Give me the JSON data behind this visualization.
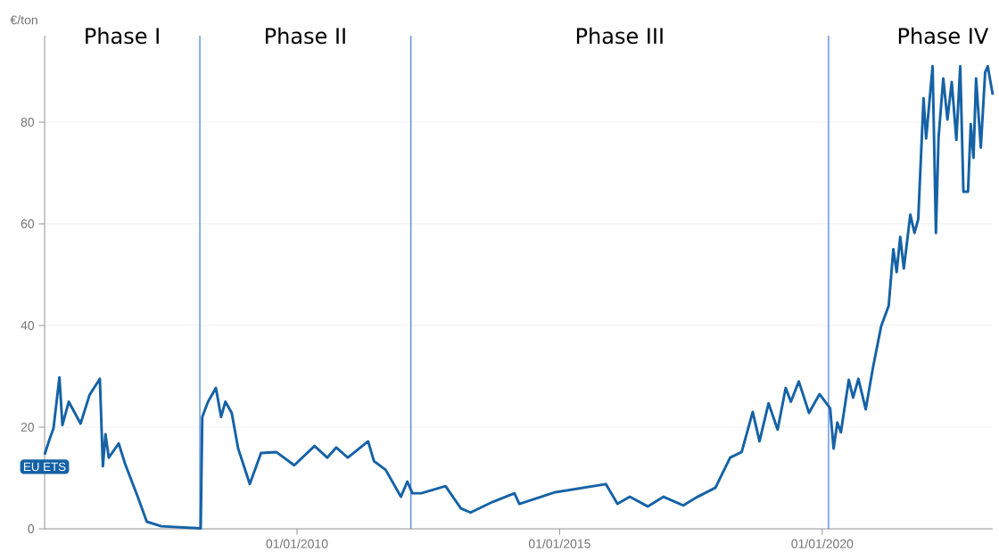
{
  "chart_data": {
    "type": "line",
    "ylabel": "€/ton",
    "annotations": [
      "Phase I",
      "Phase II",
      "Phase III",
      "Phase IV"
    ],
    "xlim": [
      "2005-03-13",
      "2023-04-01"
    ],
    "xticks": [
      {
        "value": "2010-01-01",
        "label": "01/01/2010"
      },
      {
        "value": "2015-01-01",
        "label": "01/01/2015"
      },
      {
        "value": "2020-01-01",
        "label": "01/01/2020"
      }
    ],
    "ylim": [
      0,
      97
    ],
    "yticks": [
      0,
      20,
      40,
      60,
      80
    ],
    "grid": "y",
    "ref_lines": [
      {
        "axis": "x",
        "value": "2008-02-25",
        "color": "#2f6bdb"
      },
      {
        "axis": "x",
        "value": "2012-03-03",
        "color": "#2f6bdb"
      },
      {
        "axis": "x",
        "value": "2020-02-14",
        "color": "#2f6bdb"
      }
    ],
    "series": [
      {
        "name": "EU ETS",
        "color": "#1562a6",
        "x": [
          "2005-03-13",
          "2005-04-15",
          "2005-05-14",
          "2005-06-24",
          "2005-07-15",
          "2005-08-28",
          "2005-11-18",
          "2006-01-19",
          "2006-04-01",
          "2006-04-22",
          "2006-05-10",
          "2006-06-02",
          "2006-08-10",
          "2006-09-23",
          "2006-12-20",
          "2007-02-21",
          "2007-06-02",
          "2008-03-02",
          "2008-03-13",
          "2008-04-22",
          "2008-06-16",
          "2008-07-22",
          "2008-08-21",
          "2008-10-04",
          "2008-11-18",
          "2009-02-07",
          "2009-04-26",
          "2009-08-10",
          "2009-12-13",
          "2010-05-03",
          "2010-07-30",
          "2010-10-01",
          "2010-12-20",
          "2011-05-10",
          "2011-06-20",
          "2011-09-09",
          "2011-12-24",
          "2012-02-07",
          "2012-03-13",
          "2012-05-14",
          "2012-10-30",
          "2013-02-14",
          "2013-04-22",
          "2013-09-23",
          "2014-02-21",
          "2014-03-27",
          "2014-12-02",
          "2015-11-18",
          "2016-02-07",
          "2016-05-03",
          "2016-09-05",
          "2016-12-24",
          "2017-05-10",
          "2017-08-18",
          "2017-12-20",
          "2018-04-01",
          "2018-06-20",
          "2018-09-05",
          "2018-10-22",
          "2018-12-24",
          "2019-02-25",
          "2019-04-22",
          "2019-05-28",
          "2019-07-22",
          "2019-10-01",
          "2019-12-13",
          "2020-02-25",
          "2020-03-20",
          "2020-04-15",
          "2020-05-10",
          "2020-07-04",
          "2020-08-03",
          "2020-09-09",
          "2020-10-30",
          "2020-12-20",
          "2021-02-14",
          "2021-04-08",
          "2021-05-10",
          "2021-06-02",
          "2021-06-27",
          "2021-07-22",
          "2021-09-05",
          "2021-10-04",
          "2021-10-30",
          "2021-12-06",
          "2021-12-24",
          "2022-02-07",
          "2022-03-02",
          "2022-03-20",
          "2022-04-22",
          "2022-05-21",
          "2022-06-20",
          "2022-07-22",
          "2022-08-18",
          "2022-09-09",
          "2022-10-11",
          "2022-10-30",
          "2022-11-18",
          "2022-12-06",
          "2023-01-08",
          "2023-02-07",
          "2023-02-25",
          "2023-04-01"
        ],
        "values": [
          14.6,
          17.5,
          19.8,
          29.8,
          20.4,
          25,
          20.7,
          26.3,
          29.5,
          12.3,
          18.6,
          14,
          16.8,
          12.8,
          6.3,
          1.4,
          0.5,
          0.1,
          22,
          25,
          27.7,
          22,
          25,
          22.8,
          15.8,
          8.8,
          14.9,
          15.1,
          12.5,
          16.3,
          14,
          16,
          14,
          17.2,
          13.3,
          11.6,
          6.3,
          9.3,
          7,
          7,
          8.4,
          4,
          3.2,
          5.3,
          7,
          4.9,
          7.2,
          8.8,
          4.9,
          6.3,
          4.4,
          6.3,
          4.6,
          6.3,
          8.1,
          14,
          15.1,
          23,
          17.2,
          24.7,
          19.5,
          27.7,
          25,
          29,
          22.8,
          26.5,
          23.7,
          15.8,
          20.9,
          19,
          29.3,
          25.8,
          29.5,
          23.5,
          31.8,
          39.8,
          43.9,
          55,
          50.5,
          57.4,
          51.2,
          61.8,
          58.2,
          60.9,
          84.7,
          76.8,
          91,
          58.2,
          76.8,
          88.6,
          80.5,
          87.9,
          76.5,
          91,
          66.3,
          66.3,
          79.6,
          73,
          88.6,
          75,
          89.8,
          91,
          85.4
        ]
      }
    ]
  }
}
